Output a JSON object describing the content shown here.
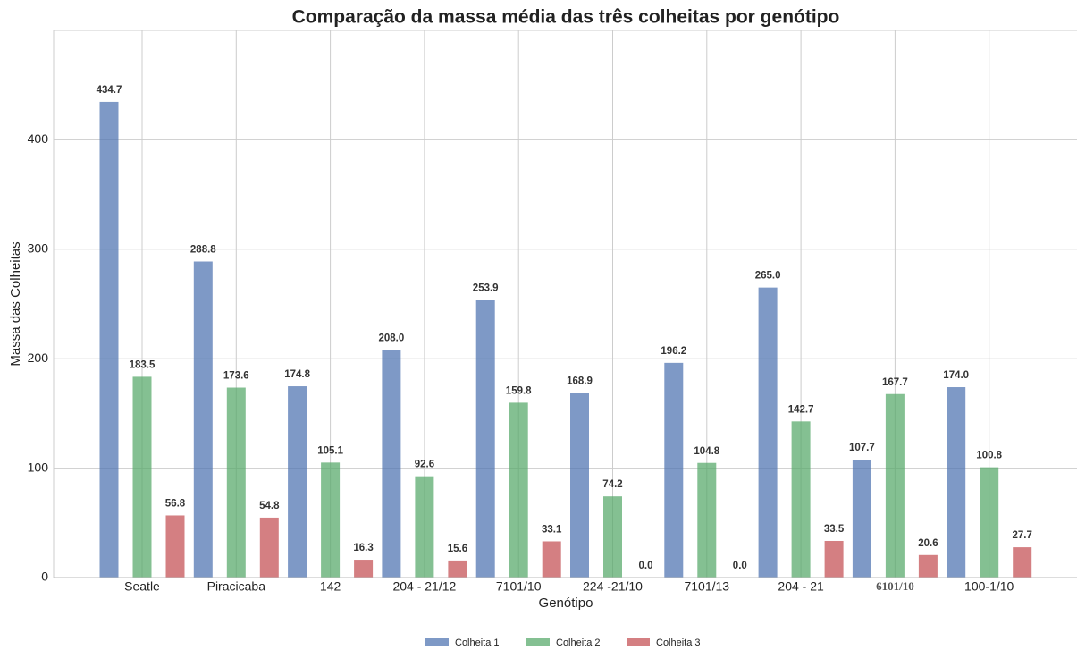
{
  "chart_data": {
    "type": "bar",
    "title": "Comparação da massa média das três colheitas por genótipo",
    "xlabel": "Genótipo",
    "ylabel": "Massa das Colheitas",
    "categories": [
      "Seatle",
      "Piracicaba",
      "142",
      "204 - 21/12",
      "7101/10",
      "224 -21/10",
      "7101/13",
      "204 - 21",
      "6101/10",
      "100-1/10"
    ],
    "series": [
      {
        "name": "Colheita 1",
        "color": "#4c72b0",
        "values": [
          434.7,
          288.8,
          174.8,
          208.0,
          253.9,
          168.9,
          196.2,
          265.0,
          107.7,
          174.0
        ],
        "value_labels": [
          "434.7",
          "288.8",
          "174.8",
          "208.0",
          "253.9",
          "168.9",
          "196.2",
          "265.0",
          "107.7",
          "174.0"
        ]
      },
      {
        "name": "Colheita 2",
        "color": "#55a868",
        "values": [
          183.5,
          173.6,
          105.1,
          92.6,
          159.8,
          74.2,
          104.8,
          142.7,
          167.7,
          100.8
        ],
        "value_labels": [
          "183.5",
          "173.6",
          "105.1",
          "92.6",
          "159.8",
          "74.2",
          "104.8",
          "142.7",
          "167.7",
          "100.8"
        ]
      },
      {
        "name": "Colheita 3",
        "color": "#c44e52",
        "values": [
          56.8,
          54.8,
          16.3,
          15.6,
          33.1,
          0.0,
          0.0,
          33.5,
          20.6,
          27.7
        ],
        "value_labels": [
          "56.8",
          "54.8",
          "16.3",
          "15.6",
          "33.1",
          "0.0",
          "0.0",
          "33.5",
          "20.6",
          "27.7"
        ]
      }
    ],
    "ylim": [
      0,
      500
    ],
    "yticks": [
      0,
      100,
      200,
      300,
      400
    ],
    "grid": true,
    "legend": "bottom"
  }
}
